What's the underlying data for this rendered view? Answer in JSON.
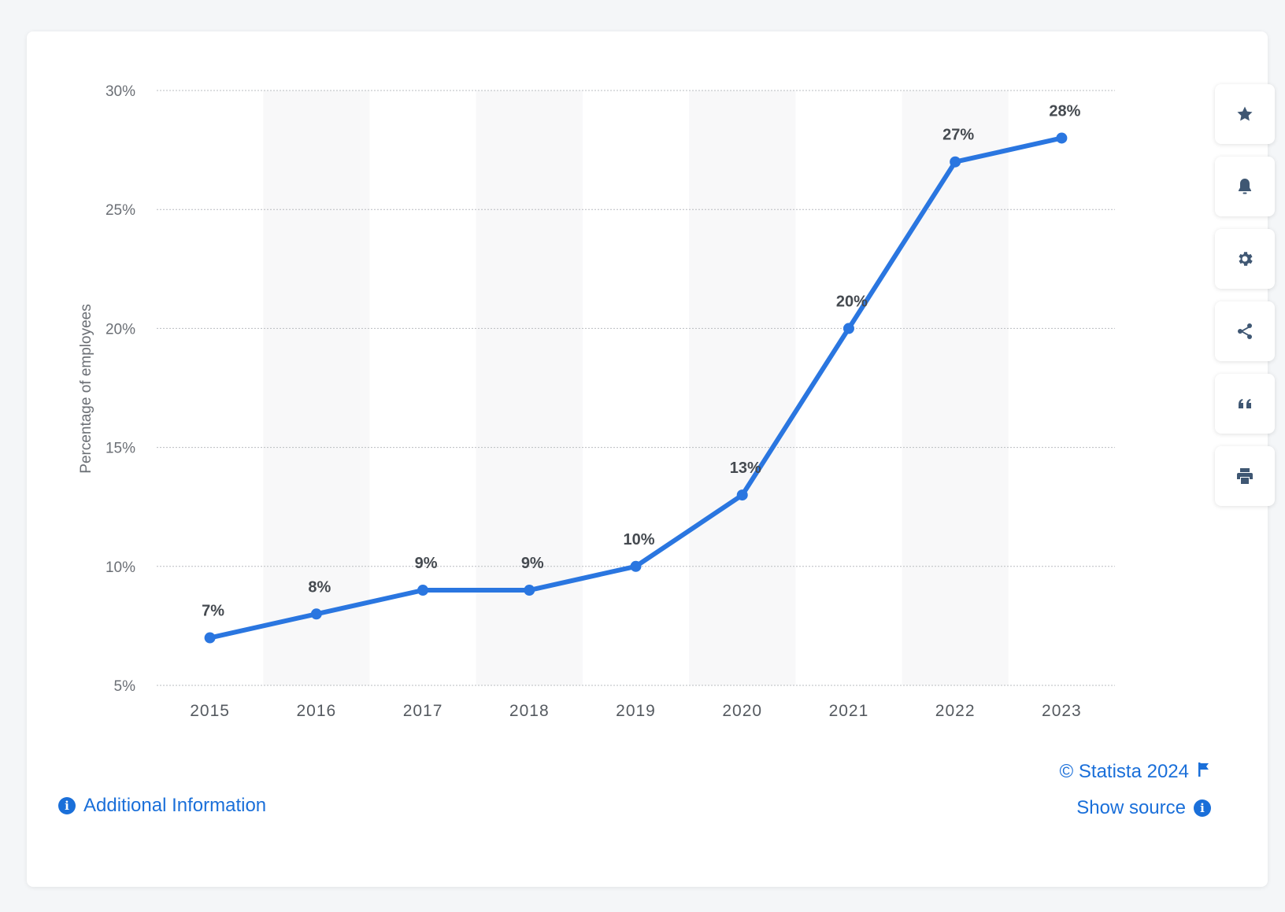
{
  "chart_data": {
    "type": "line",
    "categories": [
      "2015",
      "2016",
      "2017",
      "2018",
      "2019",
      "2020",
      "2021",
      "2022",
      "2023"
    ],
    "series": [
      {
        "values": [
          7,
          8,
          9,
          9,
          10,
          13,
          20,
          27,
          28
        ]
      }
    ],
    "data_labels": [
      "7%",
      "8%",
      "9%",
      "9%",
      "10%",
      "13%",
      "20%",
      "27%",
      "28%"
    ],
    "ylabel": "Percentage of employees",
    "xlabel": "",
    "ylim": [
      5,
      30
    ],
    "yticks": [
      5,
      10,
      15,
      20,
      25,
      30
    ],
    "ytick_labels": [
      "5%",
      "10%",
      "15%",
      "20%",
      "25%",
      "30%"
    ],
    "grid": "horizontal dotted",
    "alternating_column_shading": true,
    "line_color": "#2a76e0"
  },
  "toolbar": {
    "buttons": [
      {
        "name": "favorite-button",
        "icon": "star-icon"
      },
      {
        "name": "notification-button",
        "icon": "bell-icon"
      },
      {
        "name": "settings-button",
        "icon": "gear-icon"
      },
      {
        "name": "share-button",
        "icon": "share-icon"
      },
      {
        "name": "cite-button",
        "icon": "quote-icon"
      },
      {
        "name": "print-button",
        "icon": "printer-icon"
      }
    ]
  },
  "footer": {
    "copyright": "© Statista 2024",
    "show_source": "Show source",
    "additional_info": "Additional Information"
  },
  "colors": {
    "accent": "#1a6fd9",
    "icon": "#3f5773"
  }
}
